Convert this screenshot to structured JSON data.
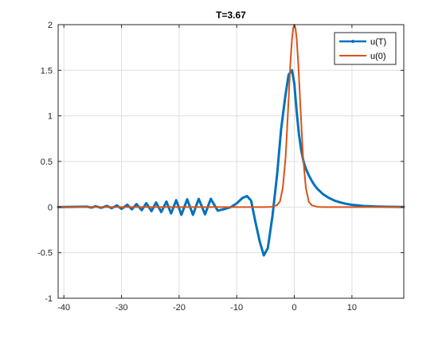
{
  "chart_data": {
    "type": "line",
    "title": "T=3.67",
    "xlabel": "",
    "ylabel": "",
    "xlim": [
      -41,
      19
    ],
    "ylim": [
      -1,
      2
    ],
    "xticks": [
      -40,
      -30,
      -20,
      -10,
      0,
      10
    ],
    "yticks": [
      -1,
      -0.5,
      0,
      0.5,
      1,
      1.5,
      2
    ],
    "xtick_labels": [
      "-40",
      "-30",
      "-20",
      "-10",
      "0",
      "10"
    ],
    "ytick_labels": [
      "-1",
      "-0.5",
      "0",
      "0.5",
      "1",
      "1.5",
      "2"
    ],
    "grid": true,
    "legend_position": "top-right",
    "series": [
      {
        "name": "u(T)",
        "color": "#0072BD",
        "x": [
          -41,
          -36,
          -35.2,
          -34.5,
          -33.5,
          -32.5,
          -31.7,
          -30.8,
          -30,
          -29,
          -28.2,
          -27.4,
          -26.5,
          -25.7,
          -24.8,
          -24,
          -23.1,
          -22.2,
          -21.4,
          -20.5,
          -19.6,
          -18.6,
          -17.6,
          -16.6,
          -15.5,
          -14.5,
          -13.3,
          -12,
          -11,
          -10,
          -9,
          -8.2,
          -7.5,
          -6.8,
          -6,
          -5.3,
          -4.6,
          -3.8,
          -3,
          -2.3,
          -1.6,
          -1,
          -0.4,
          0,
          0.4,
          0.8,
          1.2,
          1.6,
          2,
          2.5,
          3,
          3.5,
          4,
          5,
          6,
          7,
          8,
          9,
          10,
          12,
          14,
          16,
          19
        ],
        "y": [
          0,
          0.004,
          -0.006,
          0.008,
          -0.008,
          0.012,
          -0.012,
          0.018,
          -0.02,
          0.025,
          -0.025,
          0.033,
          -0.035,
          0.043,
          -0.045,
          0.05,
          -0.055,
          0.06,
          -0.07,
          0.075,
          -0.085,
          0.085,
          -0.085,
          0.09,
          -0.08,
          0.09,
          -0.04,
          -0.02,
          0,
          0.04,
          0.1,
          0.12,
          0.07,
          -0.15,
          -0.38,
          -0.53,
          -0.45,
          -0.1,
          0.35,
          0.85,
          1.2,
          1.45,
          1.5,
          1.35,
          1.05,
          0.8,
          0.62,
          0.5,
          0.42,
          0.35,
          0.29,
          0.24,
          0.2,
          0.14,
          0.1,
          0.07,
          0.05,
          0.035,
          0.025,
          0.012,
          0.006,
          0.003,
          0.001
        ]
      },
      {
        "name": "u(0)",
        "color": "#D95319",
        "x": [
          -41,
          -5,
          -4,
          -3,
          -2.5,
          -2,
          -1.5,
          -1,
          -0.7,
          -0.4,
          -0.2,
          0,
          0.2,
          0.4,
          0.7,
          1,
          1.5,
          2,
          2.5,
          3,
          4,
          5,
          19
        ],
        "y": [
          0,
          0,
          0.002,
          0.02,
          0.06,
          0.21,
          0.56,
          1.17,
          1.56,
          1.85,
          1.96,
          2,
          1.96,
          1.85,
          1.56,
          1.17,
          0.56,
          0.21,
          0.06,
          0.02,
          0.002,
          0,
          0
        ]
      }
    ]
  }
}
